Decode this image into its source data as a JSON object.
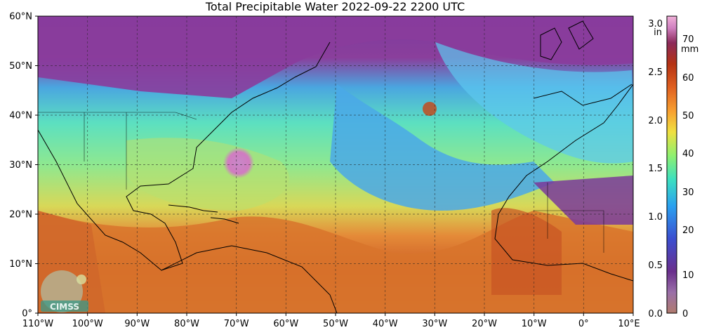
{
  "title": "Total Precipitable Water  2022-09-22 2200 UTC",
  "latitude_labels": [
    "60°N",
    "50°N",
    "40°N",
    "30°N",
    "20°N",
    "10°N",
    "0°"
  ],
  "longitude_labels": [
    "110°W",
    "100°W",
    "90°W",
    "80°W",
    "70°W",
    "60°W",
    "50°W",
    "40°W",
    "30°W",
    "20°W",
    "10°W",
    "0°",
    "10°E"
  ],
  "colorbar": {
    "inch_unit": "in",
    "mm_unit": "mm",
    "inch_ticks": [
      "3.0",
      "2.5",
      "2.0",
      "1.5",
      "1.0",
      "0.5",
      "0.0"
    ],
    "mm_ticks": [
      "70",
      "60",
      "50",
      "40",
      "30",
      "20",
      "10",
      "0"
    ],
    "colors": [
      "#b07b6e",
      "#9a6fa8",
      "#6a2f8c",
      "#3b4ed0",
      "#2aa0f0",
      "#3ce0c0",
      "#8ef070",
      "#f0e040",
      "#f8a030",
      "#e06020",
      "#b43214",
      "#8c2a5a",
      "#d080c0",
      "#f0b0d8"
    ]
  },
  "logo": {
    "text": "CIMSS"
  },
  "map_colors": {
    "ocean_mid": "#5fd8c8",
    "tropics": "#d06a28",
    "north": "#8a3a9c",
    "dry_band": "#3aa0e8",
    "storm": "#c878c0",
    "coast": "#000000"
  }
}
